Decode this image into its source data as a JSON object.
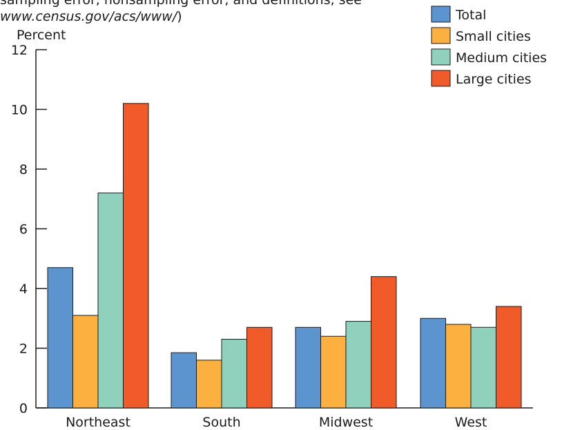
{
  "note": {
    "line1": "sampling error, nonsampling error, and definitions, see",
    "line2_italic": "www.census.gov/acs/www/",
    "line2_tail": ")"
  },
  "chart_data": {
    "type": "bar",
    "title": "",
    "xlabel": "",
    "ylabel": "Percent",
    "ylim": [
      0,
      12
    ],
    "yticks": [
      "0",
      "2",
      "4",
      "6",
      "8",
      "10",
      "12"
    ],
    "categories": [
      "Northeast",
      "South",
      "Midwest",
      "West"
    ],
    "legend_position": "top-right",
    "grid": false,
    "series": [
      {
        "name": "Total",
        "color": "#5b94cf",
        "values": [
          4.7,
          1.85,
          2.7,
          3.0
        ]
      },
      {
        "name": "Small cities",
        "color": "#fbb040",
        "values": [
          3.1,
          1.6,
          2.4,
          2.8
        ]
      },
      {
        "name": "Medium cities",
        "color": "#8fd1bd",
        "values": [
          7.2,
          2.3,
          2.9,
          2.7
        ]
      },
      {
        "name": "Large cities",
        "color": "#f15a29",
        "values": [
          10.2,
          2.7,
          4.4,
          3.4
        ]
      }
    ]
  }
}
